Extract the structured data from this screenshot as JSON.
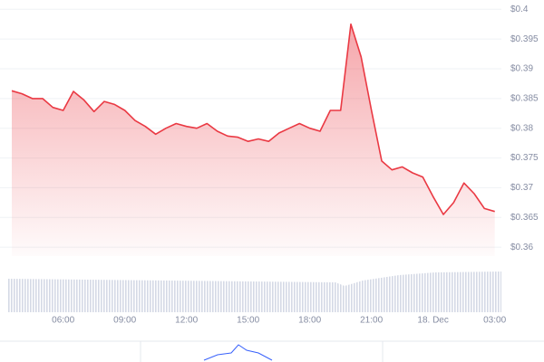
{
  "chart_data": {
    "type": "area",
    "categories": [
      null,
      null,
      null,
      null,
      null,
      "06:00",
      null,
      null,
      null,
      null,
      null,
      "09:00",
      null,
      null,
      null,
      null,
      null,
      "12:00",
      null,
      null,
      null,
      null,
      null,
      "15:00",
      null,
      null,
      null,
      null,
      null,
      "18:00",
      null,
      null,
      null,
      null,
      null,
      "21:00",
      null,
      null,
      null,
      null,
      null,
      "18. Dec",
      null,
      null,
      null,
      null,
      null,
      "03:00"
    ],
    "series": [
      {
        "color": "#ea3943",
        "values": [
          0.3863,
          0.3858,
          0.385,
          0.385,
          0.3835,
          0.383,
          0.3862,
          0.3848,
          0.3828,
          0.3845,
          0.384,
          0.383,
          0.3813,
          0.3803,
          0.379,
          0.38,
          0.3808,
          0.3803,
          0.38,
          0.3808,
          0.3795,
          0.3787,
          0.3785,
          0.3778,
          0.3782,
          0.3778,
          0.3792,
          0.38,
          0.3808,
          0.38,
          0.3795,
          0.383,
          0.383,
          0.3975,
          0.392,
          0.383,
          0.3745,
          0.373,
          0.3735,
          0.3725,
          0.3718,
          0.3685,
          0.3655,
          0.3675,
          0.3708,
          0.369,
          0.3665,
          0.366
        ]
      }
    ],
    "ylim": [
      0.3585,
      0.4005
    ],
    "yticks": [
      {
        "value": 0.36,
        "label": "$0.36"
      },
      {
        "value": 0.365,
        "label": "$0.365"
      },
      {
        "value": 0.37,
        "label": "$0.37"
      },
      {
        "value": 0.375,
        "label": "$0.375"
      },
      {
        "value": 0.38,
        "label": "$0.38"
      },
      {
        "value": 0.385,
        "label": "$0.385"
      },
      {
        "value": 0.39,
        "label": "$0.39"
      },
      {
        "value": 0.395,
        "label": "$0.395"
      },
      {
        "value": 0.4,
        "label": "$0.4"
      }
    ],
    "grid": true
  }
}
